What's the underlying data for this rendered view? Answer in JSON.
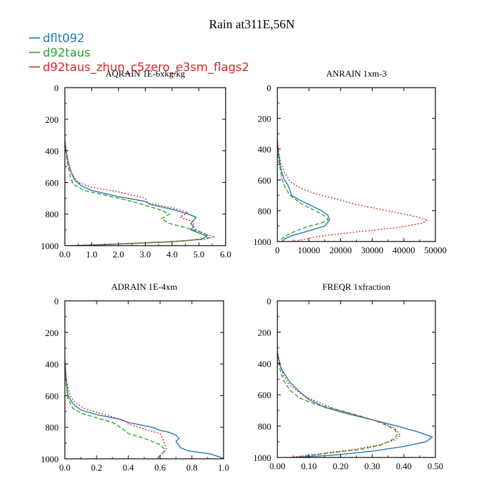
{
  "figure": {
    "title": "Rain at311E,56N",
    "legend": [
      {
        "name": "dflt092",
        "color": "#1f77b4",
        "dash": "solid"
      },
      {
        "name": "d92taus",
        "color": "#2ca02c",
        "dash": "dashed"
      },
      {
        "name": "d92taus_zhun_c5zero_e3sm_flags2",
        "color": "#d62728",
        "dash": "dotted"
      }
    ]
  },
  "chart_data": [
    {
      "type": "line",
      "title": "AQRAIN  1E-6xkg/kg",
      "xlabel": "",
      "ylabel": "",
      "xlim": [
        0,
        6.0
      ],
      "ylim": [
        1000,
        0
      ],
      "xticks": [
        0.0,
        1.0,
        2.0,
        3.0,
        4.0,
        5.0,
        6.0
      ],
      "xtick_labels": [
        "0.0",
        "1.0",
        "2.0",
        "3.0",
        "4.0",
        "5.0",
        "6.0"
      ],
      "yticks": [
        0,
        200,
        400,
        600,
        800,
        1000
      ],
      "ytick_labels": [
        "0",
        "200",
        "400",
        "600",
        "800",
        "1000"
      ],
      "series": [
        {
          "name": "dflt092",
          "points": [
            [
              0,
              340
            ],
            [
              0.05,
              400
            ],
            [
              0.1,
              450
            ],
            [
              0.2,
              520
            ],
            [
              0.35,
              580
            ],
            [
              0.6,
              620
            ],
            [
              1.0,
              650
            ],
            [
              2.0,
              690
            ],
            [
              3.0,
              720
            ],
            [
              3.2,
              740
            ],
            [
              4.0,
              770
            ],
            [
              4.6,
              800
            ],
            [
              4.9,
              820
            ],
            [
              4.7,
              860
            ],
            [
              4.8,
              880
            ],
            [
              4.7,
              900
            ],
            [
              5.0,
              920
            ],
            [
              5.3,
              940
            ],
            [
              5.1,
              960
            ],
            [
              4.0,
              975
            ],
            [
              2.0,
              990
            ],
            [
              0.5,
              1000
            ]
          ]
        },
        {
          "name": "d92taus",
          "points": [
            [
              0,
              350
            ],
            [
              0.05,
              420
            ],
            [
              0.1,
              480
            ],
            [
              0.2,
              560
            ],
            [
              0.3,
              610
            ],
            [
              0.7,
              650
            ],
            [
              1.5,
              680
            ],
            [
              2.5,
              720
            ],
            [
              3.5,
              770
            ],
            [
              3.9,
              800
            ],
            [
              3.6,
              830
            ],
            [
              3.9,
              860
            ],
            [
              4.6,
              890
            ],
            [
              5.0,
              910
            ],
            [
              5.3,
              930
            ],
            [
              5.4,
              950
            ],
            [
              4.5,
              970
            ],
            [
              2.5,
              985
            ],
            [
              1.0,
              995
            ],
            [
              0.2,
              1000
            ]
          ]
        },
        {
          "name": "d92taus_zhun_c5zero_e3sm_flags2",
          "points": [
            [
              0,
              330
            ],
            [
              0.05,
              400
            ],
            [
              0.1,
              460
            ],
            [
              0.25,
              540
            ],
            [
              0.5,
              600
            ],
            [
              1.0,
              630
            ],
            [
              2.0,
              660
            ],
            [
              3.0,
              700
            ],
            [
              3.1,
              730
            ],
            [
              4.0,
              760
            ],
            [
              4.6,
              790
            ],
            [
              4.3,
              820
            ],
            [
              4.8,
              850
            ],
            [
              4.8,
              880
            ],
            [
              4.9,
              900
            ],
            [
              5.3,
              930
            ],
            [
              5.6,
              945
            ],
            [
              5.2,
              960
            ],
            [
              3.5,
              980
            ],
            [
              1.5,
              993
            ],
            [
              0.3,
              1000
            ]
          ]
        }
      ]
    },
    {
      "type": "line",
      "title": "ANRAIN  1xm-3",
      "xlabel": "",
      "ylabel": "",
      "xlim": [
        0,
        50000
      ],
      "ylim": [
        1000,
        0
      ],
      "xticks": [
        0,
        10000,
        20000,
        30000,
        40000,
        50000
      ],
      "xtick_labels": [
        "0",
        "10000",
        "20000",
        "30000",
        "40000",
        "50000"
      ],
      "yticks": [
        0,
        200,
        400,
        600,
        800,
        1000
      ],
      "ytick_labels": [
        "0",
        "200",
        "400",
        "600",
        "800",
        "1000"
      ],
      "series": [
        {
          "name": "dflt092",
          "points": [
            [
              0,
              340
            ],
            [
              200,
              400
            ],
            [
              500,
              450
            ],
            [
              1000,
              520
            ],
            [
              2000,
              590
            ],
            [
              3500,
              640
            ],
            [
              4500,
              700
            ],
            [
              7000,
              730
            ],
            [
              11000,
              770
            ],
            [
              14000,
              800
            ],
            [
              16000,
              830
            ],
            [
              16500,
              860
            ],
            [
              15000,
              900
            ],
            [
              10000,
              930
            ],
            [
              5000,
              960
            ],
            [
              2500,
              980
            ],
            [
              1500,
              1000
            ]
          ]
        },
        {
          "name": "d92taus",
          "points": [
            [
              0,
              350
            ],
            [
              200,
              420
            ],
            [
              500,
              480
            ],
            [
              1000,
              540
            ],
            [
              1500,
              600
            ],
            [
              2500,
              650
            ],
            [
              4000,
              700
            ],
            [
              8000,
              760
            ],
            [
              12000,
              800
            ],
            [
              15500,
              840
            ],
            [
              16000,
              860
            ],
            [
              14000,
              880
            ],
            [
              10000,
              900
            ],
            [
              6000,
              930
            ],
            [
              3000,
              960
            ],
            [
              1500,
              980
            ],
            [
              700,
              1000
            ]
          ]
        },
        {
          "name": "d92taus_zhun_c5zero_e3sm_flags2",
          "points": [
            [
              0,
              330
            ],
            [
              300,
              400
            ],
            [
              700,
              450
            ],
            [
              1200,
              500
            ],
            [
              2500,
              560
            ],
            [
              4000,
              610
            ],
            [
              7000,
              650
            ],
            [
              12000,
              690
            ],
            [
              18000,
              720
            ],
            [
              25000,
              760
            ],
            [
              35000,
              800
            ],
            [
              44000,
              840
            ],
            [
              47500,
              860
            ],
            [
              46000,
              880
            ],
            [
              38000,
              910
            ],
            [
              24000,
              940
            ],
            [
              12000,
              970
            ],
            [
              5000,
              1000
            ]
          ]
        }
      ]
    },
    {
      "type": "line",
      "title": "ADRAIN  1E-4xm",
      "xlabel": "",
      "ylabel": "",
      "xlim": [
        0,
        1.0
      ],
      "ylim": [
        1000,
        0
      ],
      "xticks": [
        0.0,
        0.2,
        0.4,
        0.6,
        0.8,
        1.0
      ],
      "xtick_labels": [
        "0.0",
        "0.2",
        "0.4",
        "0.6",
        "0.8",
        "1.0"
      ],
      "yticks": [
        0,
        200,
        400,
        600,
        800,
        1000
      ],
      "ytick_labels": [
        "0",
        "200",
        "400",
        "600",
        "800",
        "1000"
      ],
      "series": [
        {
          "name": "dflt092",
          "points": [
            [
              0,
              380
            ],
            [
              0.005,
              450
            ],
            [
              0.01,
              520
            ],
            [
              0.02,
              600
            ],
            [
              0.05,
              650
            ],
            [
              0.1,
              690
            ],
            [
              0.2,
              720
            ],
            [
              0.35,
              750
            ],
            [
              0.4,
              770
            ],
            [
              0.55,
              800
            ],
            [
              0.6,
              820
            ],
            [
              0.65,
              830
            ],
            [
              0.7,
              850
            ],
            [
              0.72,
              870
            ],
            [
              0.7,
              890
            ],
            [
              0.73,
              930
            ],
            [
              0.78,
              950
            ],
            [
              0.85,
              960
            ],
            [
              0.92,
              970
            ],
            [
              0.98,
              990
            ],
            [
              1.0,
              1000
            ]
          ]
        },
        {
          "name": "d92taus",
          "points": [
            [
              0,
              400
            ],
            [
              0.005,
              470
            ],
            [
              0.01,
              540
            ],
            [
              0.02,
              620
            ],
            [
              0.05,
              680
            ],
            [
              0.1,
              710
            ],
            [
              0.2,
              740
            ],
            [
              0.3,
              770
            ],
            [
              0.35,
              800
            ],
            [
              0.4,
              840
            ],
            [
              0.5,
              870
            ],
            [
              0.6,
              910
            ],
            [
              0.63,
              940
            ],
            [
              0.62,
              960
            ],
            [
              0.6,
              980
            ],
            [
              0.58,
              1000
            ]
          ]
        },
        {
          "name": "d92taus_zhun_c5zero_e3sm_flags2",
          "points": [
            [
              0,
              370
            ],
            [
              0.005,
              440
            ],
            [
              0.01,
              500
            ],
            [
              0.03,
              590
            ],
            [
              0.06,
              640
            ],
            [
              0.12,
              680
            ],
            [
              0.25,
              720
            ],
            [
              0.38,
              760
            ],
            [
              0.4,
              780
            ],
            [
              0.5,
              810
            ],
            [
              0.6,
              840
            ],
            [
              0.62,
              880
            ],
            [
              0.63,
              910
            ],
            [
              0.64,
              940
            ],
            [
              0.62,
              960
            ],
            [
              0.6,
              980
            ],
            [
              0.6,
              1000
            ]
          ]
        }
      ]
    },
    {
      "type": "line",
      "title": "FREQR  1xfraction",
      "xlabel": "",
      "ylabel": "",
      "xlim": [
        0,
        0.5
      ],
      "ylim": [
        1000,
        0
      ],
      "xticks": [
        0.0,
        0.1,
        0.2,
        0.3,
        0.4,
        0.5
      ],
      "xtick_labels": [
        "0.00",
        "0.10",
        "0.20",
        "0.30",
        "0.40",
        "0.50"
      ],
      "yticks": [
        0,
        200,
        400,
        600,
        800,
        1000
      ],
      "ytick_labels": [
        "0",
        "200",
        "400",
        "600",
        "800",
        "1000"
      ],
      "series": [
        {
          "name": "dflt092",
          "points": [
            [
              0.0,
              330
            ],
            [
              0.005,
              380
            ],
            [
              0.01,
              420
            ],
            [
              0.02,
              460
            ],
            [
              0.04,
              520
            ],
            [
              0.07,
              580
            ],
            [
              0.1,
              630
            ],
            [
              0.15,
              680
            ],
            [
              0.22,
              720
            ],
            [
              0.3,
              760
            ],
            [
              0.38,
              800
            ],
            [
              0.45,
              840
            ],
            [
              0.49,
              870
            ],
            [
              0.47,
              900
            ],
            [
              0.4,
              930
            ],
            [
              0.3,
              960
            ],
            [
              0.18,
              985
            ],
            [
              0.05,
              1000
            ]
          ]
        },
        {
          "name": "d92taus",
          "points": [
            [
              0.0,
              350
            ],
            [
              0.005,
              400
            ],
            [
              0.01,
              450
            ],
            [
              0.02,
              510
            ],
            [
              0.04,
              570
            ],
            [
              0.07,
              620
            ],
            [
              0.12,
              660
            ],
            [
              0.2,
              700
            ],
            [
              0.27,
              740
            ],
            [
              0.33,
              780
            ],
            [
              0.37,
              820
            ],
            [
              0.38,
              850
            ],
            [
              0.37,
              880
            ],
            [
              0.33,
              920
            ],
            [
              0.26,
              950
            ],
            [
              0.15,
              975
            ],
            [
              0.05,
              1000
            ]
          ]
        },
        {
          "name": "d92taus_zhun_c5zero_e3sm_flags2",
          "points": [
            [
              0.0,
              320
            ],
            [
              0.005,
              370
            ],
            [
              0.01,
              420
            ],
            [
              0.02,
              480
            ],
            [
              0.04,
              540
            ],
            [
              0.08,
              600
            ],
            [
              0.12,
              640
            ],
            [
              0.18,
              690
            ],
            [
              0.25,
              730
            ],
            [
              0.32,
              770
            ],
            [
              0.37,
              810
            ],
            [
              0.39,
              860
            ],
            [
              0.37,
              890
            ],
            [
              0.32,
              920
            ],
            [
              0.24,
              950
            ],
            [
              0.14,
              975
            ],
            [
              0.04,
              1000
            ]
          ]
        }
      ]
    }
  ]
}
